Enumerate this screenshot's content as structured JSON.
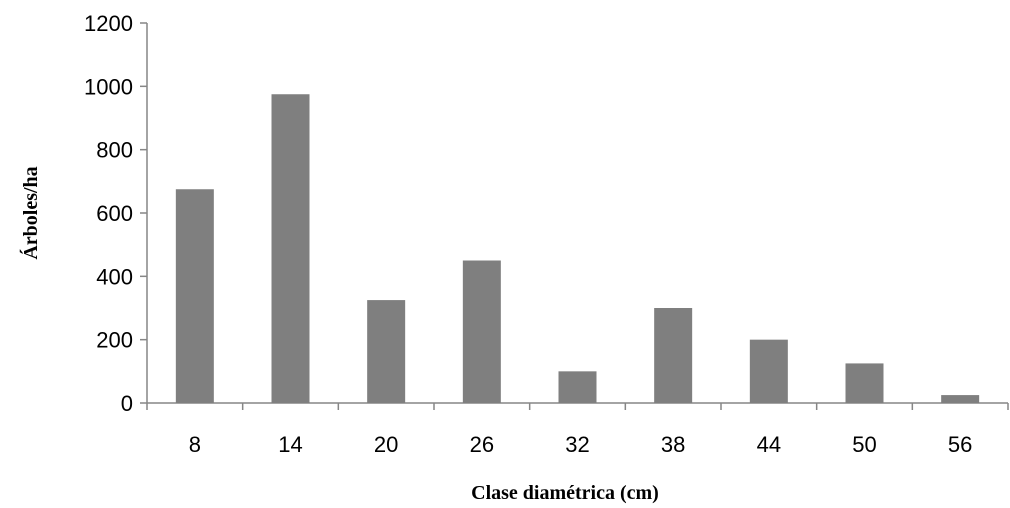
{
  "chart_data": {
    "type": "bar",
    "title": "",
    "xlabel": "Clase diamétrica (cm)",
    "ylabel": "Árboles/ha",
    "categories": [
      "8",
      "14",
      "20",
      "26",
      "32",
      "38",
      "44",
      "50",
      "56"
    ],
    "values": [
      675,
      975,
      325,
      450,
      100,
      300,
      200,
      125,
      25
    ],
    "ylim": [
      0,
      1200
    ],
    "yticks": [
      "0",
      "200",
      "400",
      "600",
      "800",
      "1000",
      "1200"
    ],
    "grid": false,
    "legend": "none",
    "colors": {
      "bar": "#7f7f7f",
      "axis": "#868686",
      "text": "#000000"
    }
  }
}
